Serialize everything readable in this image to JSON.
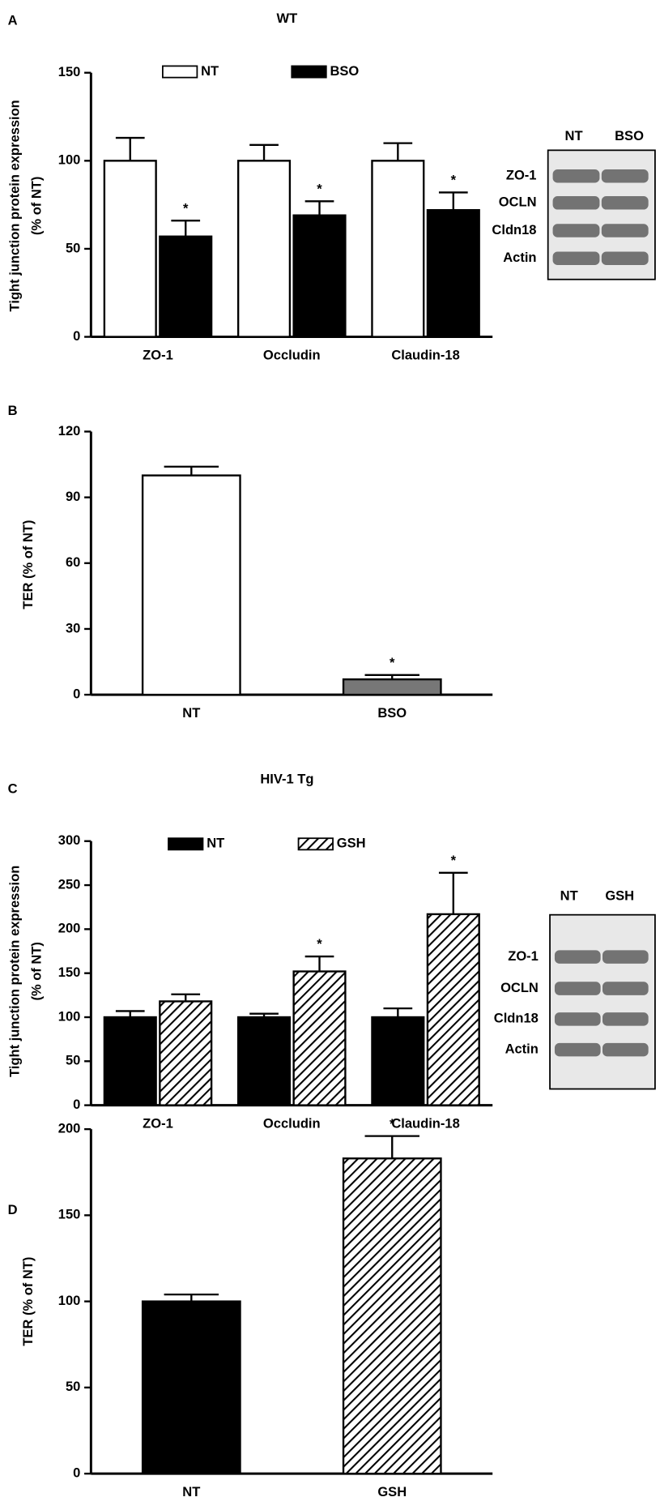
{
  "chart_data": [
    {
      "type": "bar",
      "panel": "A",
      "title": "WT",
      "ylabel": [
        "Tight junction protein expression",
        "(% of NT)"
      ],
      "categories": [
        "ZO-1",
        "Occludin",
        "Claudin-18"
      ],
      "series": [
        {
          "name": "NT",
          "color": "#ffffff",
          "hatch": false,
          "values": [
            100,
            100,
            100
          ],
          "errors": [
            13,
            9,
            10
          ],
          "markers": [
            null,
            null,
            null
          ]
        },
        {
          "name": "BSO",
          "color": "#000000",
          "hatch": false,
          "values": [
            57,
            69,
            72
          ],
          "errors": [
            9,
            8,
            10
          ],
          "markers": [
            "*",
            "*",
            "*"
          ]
        }
      ],
      "ylim": [
        0,
        150
      ],
      "yticks": [
        0,
        50,
        100,
        150
      ],
      "blot": {
        "columns": [
          "NT",
          "BSO"
        ],
        "rows": [
          "ZO-1",
          "OCLN",
          "Cldn18",
          "Actin"
        ]
      }
    },
    {
      "type": "bar",
      "panel": "B",
      "ylabel": "TER (% of NT)",
      "categories": [
        "NT",
        "BSO"
      ],
      "values": [
        100,
        7
      ],
      "errors": [
        4,
        2
      ],
      "colors": [
        "#ffffff",
        "#777777"
      ],
      "hatch": [
        false,
        false
      ],
      "markers": [
        null,
        "*"
      ],
      "ylim": [
        0,
        120
      ],
      "yticks": [
        0,
        30,
        60,
        90,
        120
      ]
    },
    {
      "type": "bar",
      "panel": "C",
      "title": "HIV-1 Tg",
      "ylabel": [
        "Tight junction protein expression",
        "(% of NT)"
      ],
      "categories": [
        "ZO-1",
        "Occludin",
        "Claudin-18"
      ],
      "series": [
        {
          "name": "NT",
          "color": "#000000",
          "hatch": false,
          "values": [
            100,
            100,
            100
          ],
          "errors": [
            7,
            4,
            10
          ],
          "markers": [
            null,
            null,
            null
          ]
        },
        {
          "name": "GSH",
          "color": "#000000",
          "hatch": true,
          "values": [
            118,
            152,
            217
          ],
          "errors": [
            8,
            17,
            47
          ],
          "markers": [
            null,
            "*",
            "*"
          ]
        }
      ],
      "ylim": [
        0,
        300
      ],
      "yticks": [
        0,
        50,
        100,
        150,
        200,
        250,
        300
      ],
      "blot": {
        "columns": [
          "NT",
          "GSH"
        ],
        "rows": [
          "ZO-1",
          "OCLN",
          "Cldn18",
          "Actin"
        ]
      }
    },
    {
      "type": "bar",
      "panel": "D",
      "ylabel": "TER (% of NT)",
      "categories": [
        "NT",
        "GSH"
      ],
      "values": [
        100,
        183
      ],
      "errors": [
        4,
        13
      ],
      "colors": [
        "#000000",
        "#000000"
      ],
      "hatch": [
        false,
        true
      ],
      "markers": [
        null,
        "*"
      ],
      "ylim": [
        0,
        200
      ],
      "yticks": [
        0,
        50,
        100,
        150,
        200
      ]
    }
  ]
}
